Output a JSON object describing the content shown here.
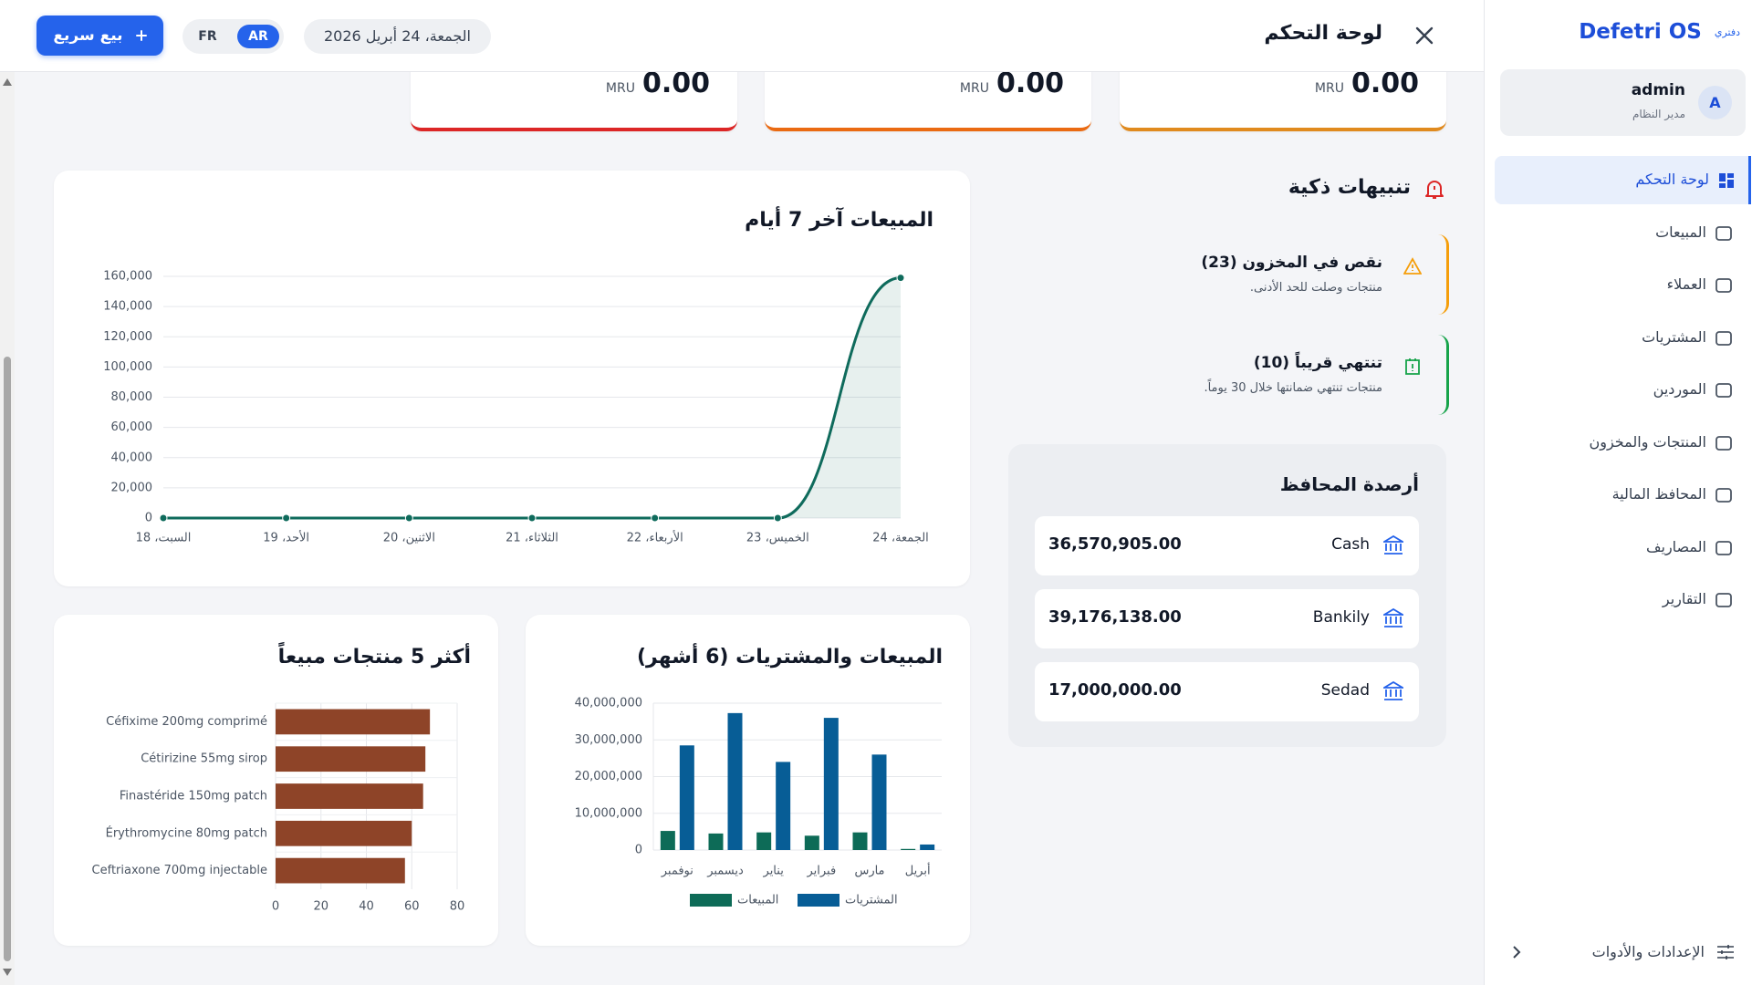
{
  "sidebar": {
    "brand": "Defetri OS",
    "brand_sub": "دفتري",
    "user": {
      "avatar": "A",
      "name": "admin",
      "role": "مدير النظام"
    },
    "nav": [
      "لوحة التحكم",
      "المبيعات",
      "العملاء",
      "المشتريات",
      "الموردين",
      "المنتجات والمخزون",
      "المحافظ المالية",
      "المصاريف",
      "التقارير"
    ],
    "active": 0,
    "settings": "الإعدادات والأدوات"
  },
  "header": {
    "title": "لوحة التحكم",
    "date": "الجمعة، 24 أبريل 2026",
    "languages": [
      "FR",
      "AR"
    ],
    "active_language": 1,
    "quick_sale": "بيع سريع"
  },
  "kpis": [
    {
      "value": "0.00",
      "currency": "MRU",
      "color": "#e08a1e"
    },
    {
      "value": "0.00",
      "currency": "MRU",
      "color": "#ea6a12"
    },
    {
      "value": "0.00",
      "currency": "MRU",
      "color": "#dc2626"
    }
  ],
  "alerts": {
    "title": "تنبيهات ذكية",
    "items": [
      {
        "title": "نقص في المخزون (23)",
        "description": "منتجات وصلت للحد الأدنى.",
        "color": "#f59e0b"
      },
      {
        "title": "تنتهي قريباً (10)",
        "description": "منتجات تنتهي ضمانتها خلال 30 يوماً.",
        "color": "#16a34a"
      }
    ]
  },
  "wallets": {
    "title": "أرصدة المحافظ",
    "items": [
      {
        "name": "Cash",
        "balance": "36,570,905.00"
      },
      {
        "name": "Bankily",
        "balance": "39,176,138.00"
      },
      {
        "name": "Sedad",
        "balance": "17,000,000.00"
      }
    ]
  },
  "chart_data": [
    {
      "type": "line",
      "title": "المبيعات آخر 7 أيام",
      "categories": [
        "السبت، 18",
        "الأحد، 19",
        "الاثنين، 20",
        "الثلاثاء، 21",
        "الأربعاء، 22",
        "الخميس، 23",
        "الجمعة، 24"
      ],
      "values": [
        0,
        0,
        0,
        0,
        0,
        0,
        159000
      ],
      "color": "#0f6b5c",
      "area": true,
      "ylim": [
        0,
        160000
      ],
      "yticks": [
        0,
        {
          "value": 20000,
          "label": "20,000"
        },
        {
          "value": 40000,
          "label": "40,000"
        },
        {
          "value": 60000,
          "label": "60,000"
        },
        {
          "value": 80000,
          "label": "80,000"
        },
        {
          "value": 100000,
          "label": "100,000"
        },
        {
          "value": 120000,
          "label": "120,000"
        },
        {
          "value": 140000,
          "label": "140,000"
        },
        {
          "value": 160000,
          "label": "160,000"
        }
      ],
      "grid": true
    },
    {
      "type": "bar",
      "title": "المبيعات والمشتريات (6 أشهر)",
      "categories": [
        "نوفمبر",
        "ديسمبر",
        "يناير",
        "فبراير",
        "مارس",
        "أبريل"
      ],
      "series": [
        {
          "name": "المبيعات",
          "color": "#0d6b57",
          "values": [
            5200000,
            4500000,
            4800000,
            3900000,
            4800000,
            300000
          ]
        },
        {
          "name": "المشتريات",
          "color": "#075d96",
          "values": [
            28500000,
            37300000,
            24000000,
            36000000,
            26000000,
            1500000
          ]
        }
      ],
      "ylim": [
        0,
        40000000
      ],
      "yticks": [
        0,
        {
          "value": 10000000,
          "label": "10,000,000"
        },
        {
          "value": 20000000,
          "label": "20,000,000"
        },
        {
          "value": 30000000,
          "label": "30,000,000"
        },
        {
          "value": 40000000,
          "label": "40,000,000"
        }
      ],
      "grid": true,
      "legend": "bottom"
    },
    {
      "type": "bar",
      "orientation": "horizontal",
      "title": "أكثر 5 منتجات مبيعاً",
      "categories": [
        "Céfixime 200mg comprimé",
        "Cétirizine 55mg sirop",
        "Finastéride 150mg patch",
        "Érythromycine 80mg patch",
        "Ceftriaxone 700mg injectable"
      ],
      "values": [
        68,
        66,
        65,
        60,
        57
      ],
      "color": "#8e4428",
      "xlim": [
        0,
        80
      ],
      "xticks": [
        0,
        20,
        40,
        60,
        80
      ],
      "grid": true
    }
  ]
}
